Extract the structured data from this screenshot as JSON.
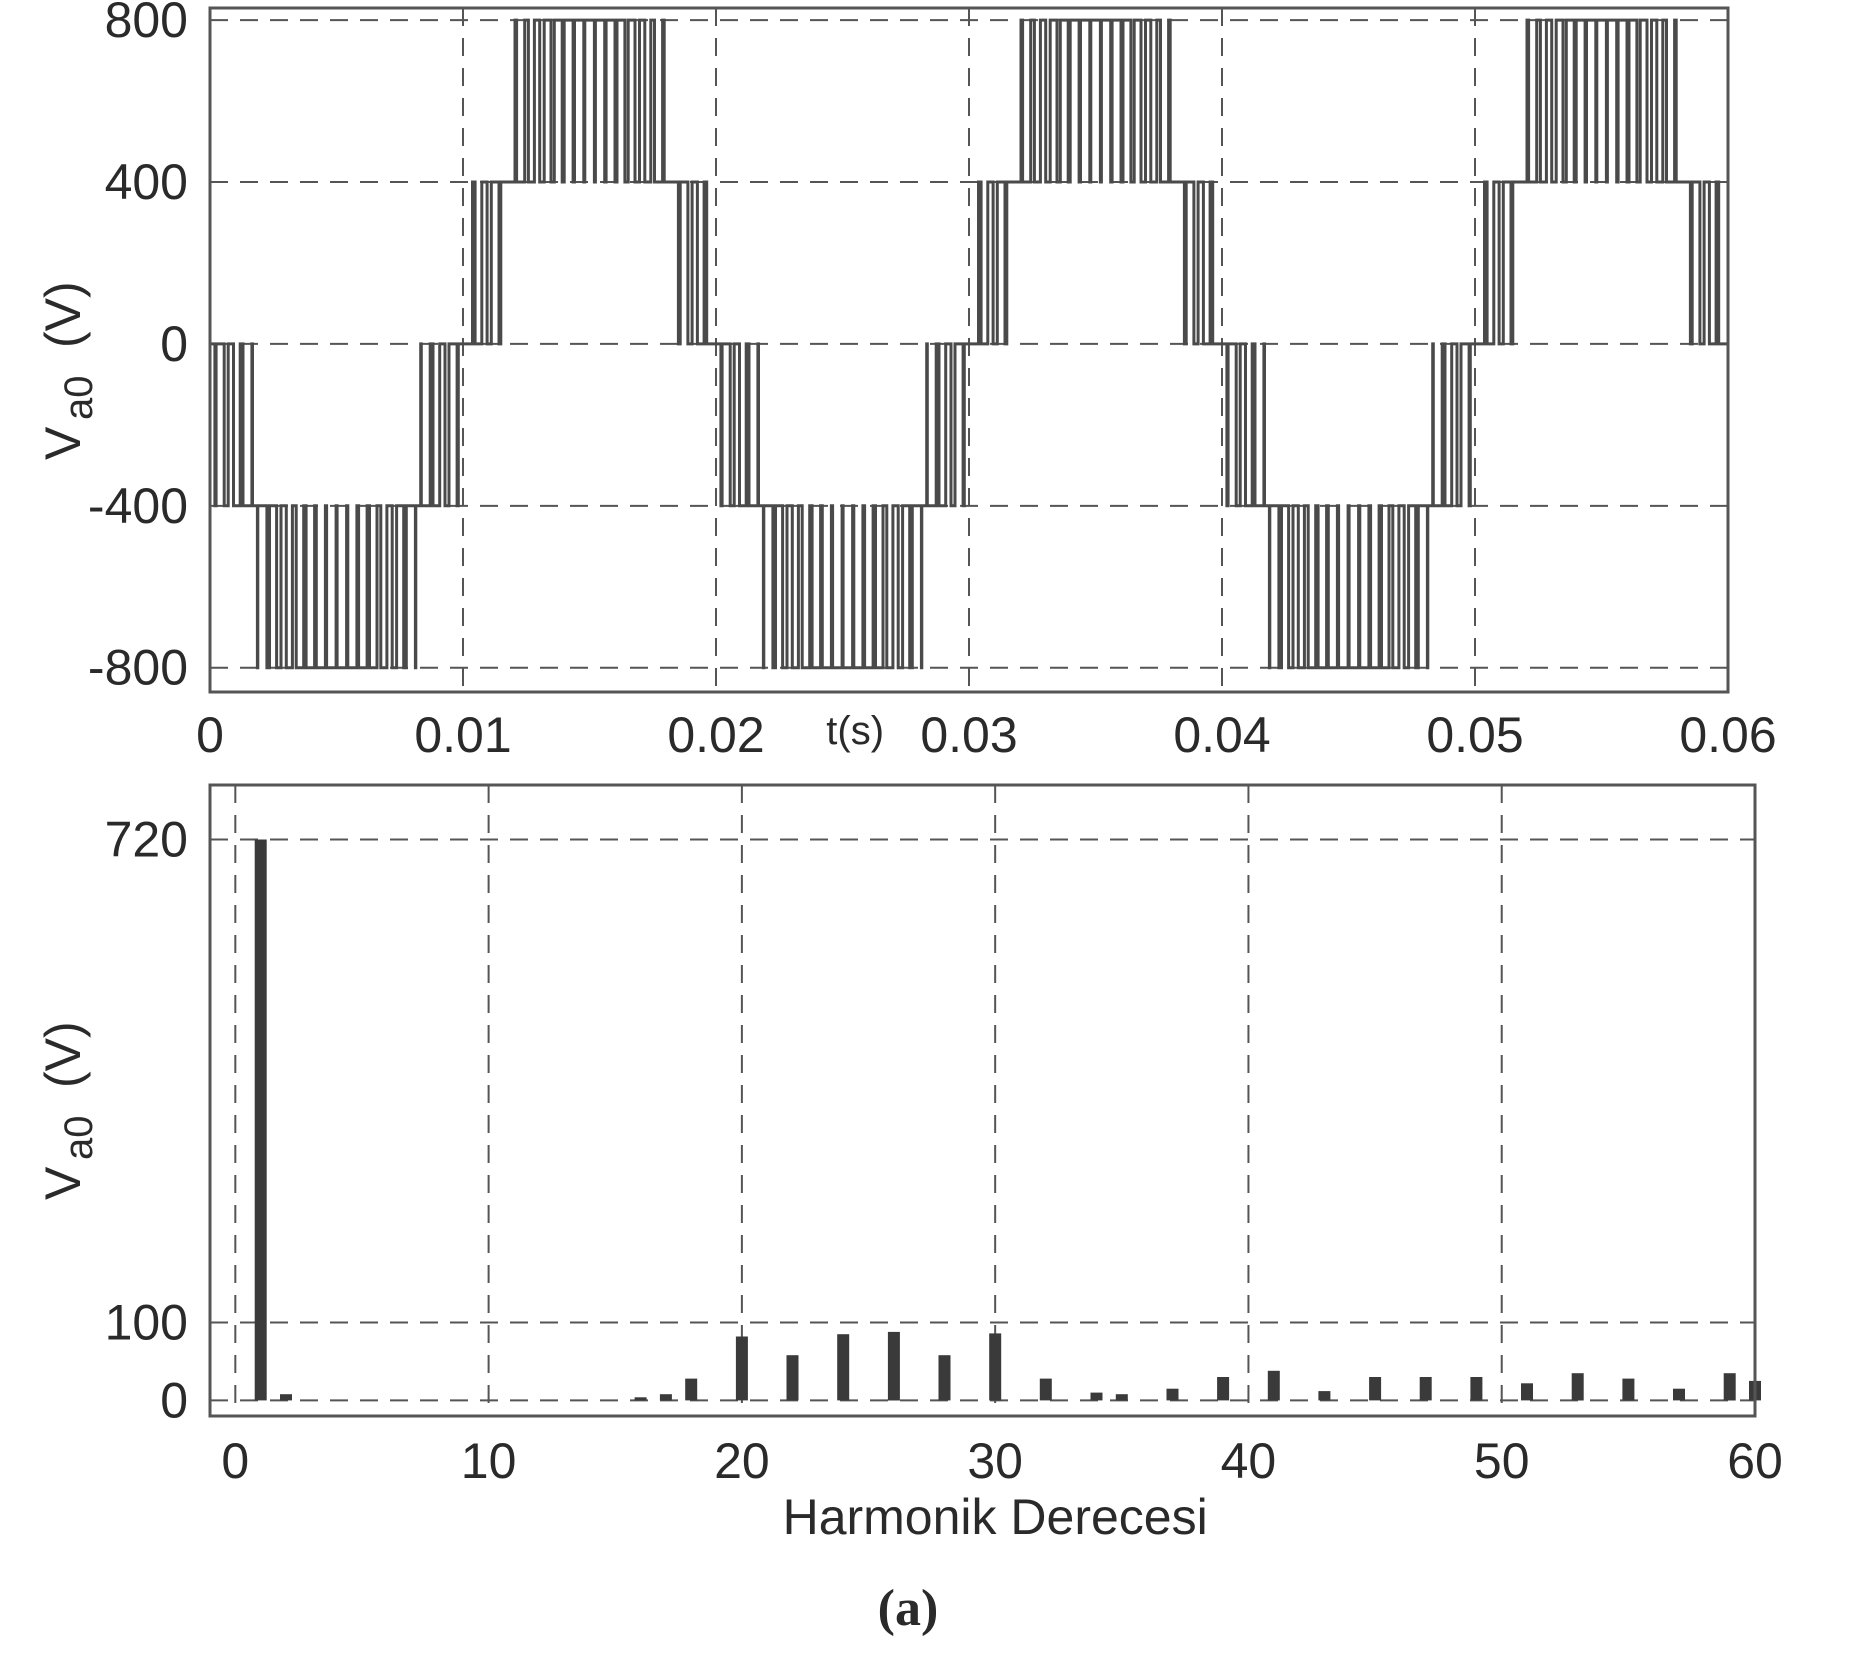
{
  "caption": "(a)",
  "chart_data": [
    {
      "type": "line",
      "xlabel": "t(s)",
      "ylabel_main": "V",
      "ylabel_sub": "a0",
      "ylabel_unit": "(V)",
      "xlim": [
        0,
        0.06
      ],
      "ylim": [
        -860,
        830
      ],
      "xticks": [
        0,
        0.01,
        0.02,
        0.03,
        0.04,
        0.05,
        0.06
      ],
      "xtick_labels": [
        "0",
        "0.01",
        "0.02",
        "0.03",
        "0.04",
        "0.05",
        "0.06"
      ],
      "yticks": [
        -800,
        -400,
        0,
        400,
        800
      ],
      "ytick_labels": [
        "-800",
        "-400",
        "0",
        "400",
        "800"
      ],
      "grid": true,
      "levels": [
        -800,
        -400,
        0,
        400,
        800
      ],
      "fundamental_hz": 50,
      "step_amplitude": 400,
      "carrier_pulses_per_level": 6
    },
    {
      "type": "bar",
      "xlabel": "Harmonik Derecesi",
      "ylabel_main": "V",
      "ylabel_sub": "a0",
      "ylabel_unit": "(V)",
      "xlim": [
        -1,
        60
      ],
      "ylim": [
        -20,
        790
      ],
      "xticks": [
        0,
        10,
        20,
        30,
        40,
        50,
        60
      ],
      "xtick_labels": [
        "0",
        "10",
        "20",
        "30",
        "40",
        "50",
        "60"
      ],
      "yticks": [
        0,
        100,
        720
      ],
      "ytick_labels": [
        "0",
        "100",
        "720"
      ],
      "grid": true,
      "x": [
        1,
        2,
        16,
        17,
        18,
        20,
        22,
        24,
        26,
        28,
        30,
        32,
        34,
        35,
        37,
        39,
        41,
        43,
        45,
        47,
        49,
        51,
        53,
        55,
        57,
        59,
        60
      ],
      "values": [
        720,
        8,
        4,
        8,
        28,
        82,
        58,
        85,
        88,
        58,
        86,
        28,
        10,
        8,
        15,
        30,
        38,
        12,
        30,
        30,
        30,
        22,
        35,
        28,
        15,
        35,
        25
      ]
    }
  ]
}
